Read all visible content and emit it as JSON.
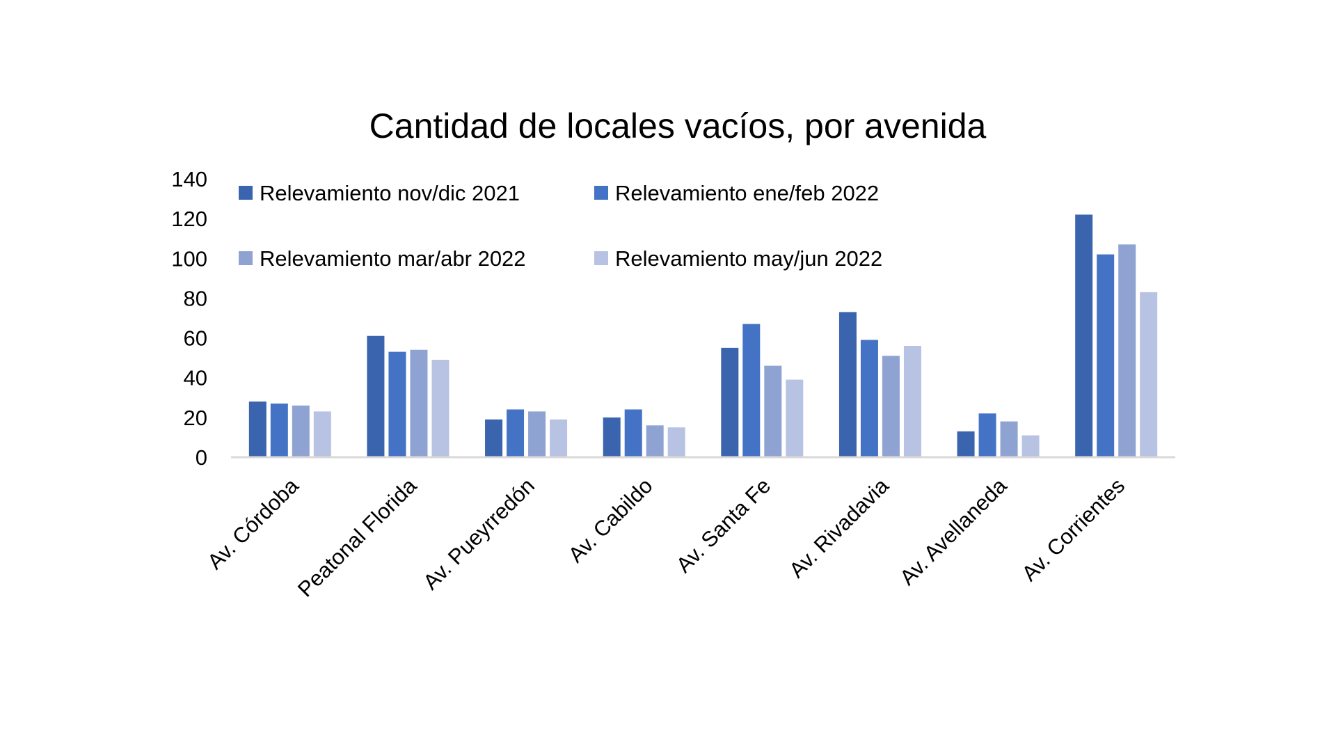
{
  "chart_data": {
    "type": "bar",
    "title": "Cantidad de locales vacíos, por avenida",
    "xlabel": "",
    "ylabel": "",
    "ylim": [
      0,
      140
    ],
    "yticks": [
      0,
      20,
      40,
      60,
      80,
      100,
      120,
      140
    ],
    "grid": false,
    "legend_placement": "top",
    "categories": [
      "Av. Córdoba",
      "Peatonal Florida",
      "Av. Pueyrredón",
      "Av. Cabildo",
      "Av. Santa Fe",
      "Av. Rivadavia",
      "Av. Avellaneda",
      "Av. Corrientes"
    ],
    "series": [
      {
        "name": "Relevamiento nov/dic 2021",
        "color": "#3A64AE",
        "values": [
          28,
          61,
          19,
          20,
          55,
          73,
          13,
          122
        ]
      },
      {
        "name": "Relevamiento ene/feb 2022",
        "color": "#4472C4",
        "values": [
          27,
          53,
          24,
          24,
          67,
          59,
          22,
          102
        ]
      },
      {
        "name": "Relevamiento mar/abr 2022",
        "color": "#8FA3D3",
        "values": [
          26,
          54,
          23,
          16,
          46,
          51,
          18,
          107
        ]
      },
      {
        "name": "Relevamiento may/jun 2022",
        "color": "#B8C3E3",
        "values": [
          23,
          49,
          19,
          15,
          39,
          56,
          11,
          83
        ]
      }
    ]
  }
}
